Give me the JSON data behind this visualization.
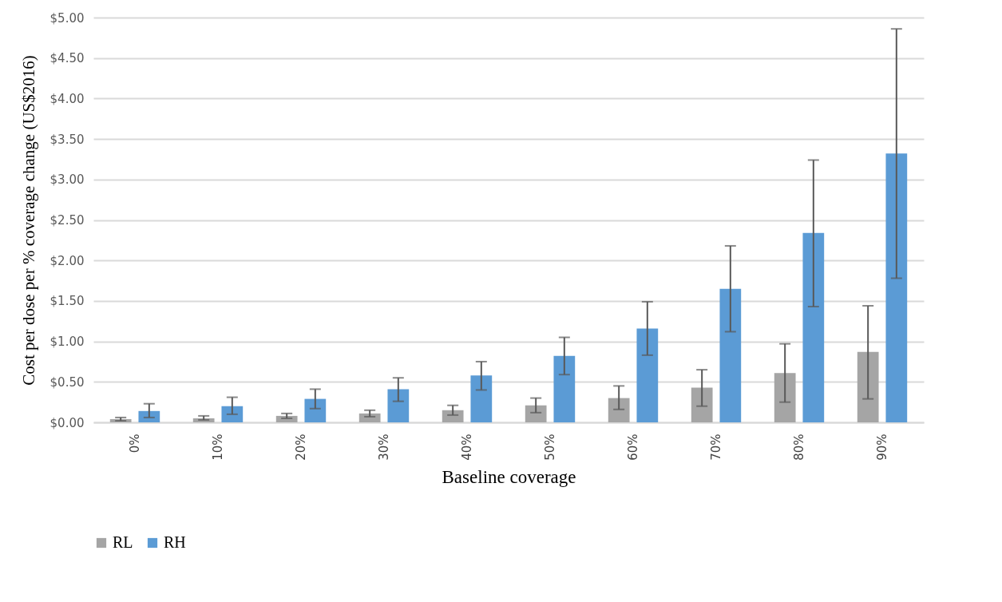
{
  "chart_data": {
    "type": "bar",
    "xlabel": "Baseline coverage",
    "ylabel": "Cost per dose per % coverage change (US$2016)",
    "categories": [
      "0%",
      "10%",
      "20%",
      "30%",
      "40%",
      "50%",
      "60%",
      "70%",
      "80%",
      "90%"
    ],
    "series": [
      {
        "name": "RL",
        "color": "#a5a5a5",
        "values": [
          0.04,
          0.05,
          0.08,
          0.11,
          0.15,
          0.21,
          0.3,
          0.43,
          0.61,
          0.87
        ],
        "errors": [
          [
            0.02,
            0.06
          ],
          [
            0.03,
            0.08
          ],
          [
            0.05,
            0.11
          ],
          [
            0.07,
            0.15
          ],
          [
            0.09,
            0.21
          ],
          [
            0.12,
            0.3
          ],
          [
            0.16,
            0.45
          ],
          [
            0.2,
            0.65
          ],
          [
            0.25,
            0.97
          ],
          [
            0.29,
            1.44
          ]
        ]
      },
      {
        "name": "RH",
        "color": "#5b9bd5",
        "values": [
          0.14,
          0.2,
          0.29,
          0.41,
          0.58,
          0.82,
          1.16,
          1.65,
          2.34,
          3.32
        ],
        "errors": [
          [
            0.06,
            0.23
          ],
          [
            0.1,
            0.31
          ],
          [
            0.17,
            0.41
          ],
          [
            0.26,
            0.55
          ],
          [
            0.4,
            0.75
          ],
          [
            0.59,
            1.05
          ],
          [
            0.83,
            1.49
          ],
          [
            1.12,
            2.18
          ],
          [
            1.43,
            3.24
          ],
          [
            1.78,
            4.86
          ]
        ]
      }
    ],
    "ylim": [
      0,
      5
    ],
    "yticks": [
      {
        "value": 0,
        "label": "$0.00"
      },
      {
        "value": 0.5,
        "label": "$0.50"
      },
      {
        "value": 1,
        "label": "$1.00"
      },
      {
        "value": 1.5,
        "label": "$1.50"
      },
      {
        "value": 2,
        "label": "$2.00"
      },
      {
        "value": 2.5,
        "label": "$2.50"
      },
      {
        "value": 3,
        "label": "$3.00"
      },
      {
        "value": 3.5,
        "label": "$3.50"
      },
      {
        "value": 4,
        "label": "$4.00"
      },
      {
        "value": 4.5,
        "label": "$4.50"
      },
      {
        "value": 5,
        "label": "$5.00"
      }
    ],
    "grid": "y",
    "legend": "bottom"
  }
}
